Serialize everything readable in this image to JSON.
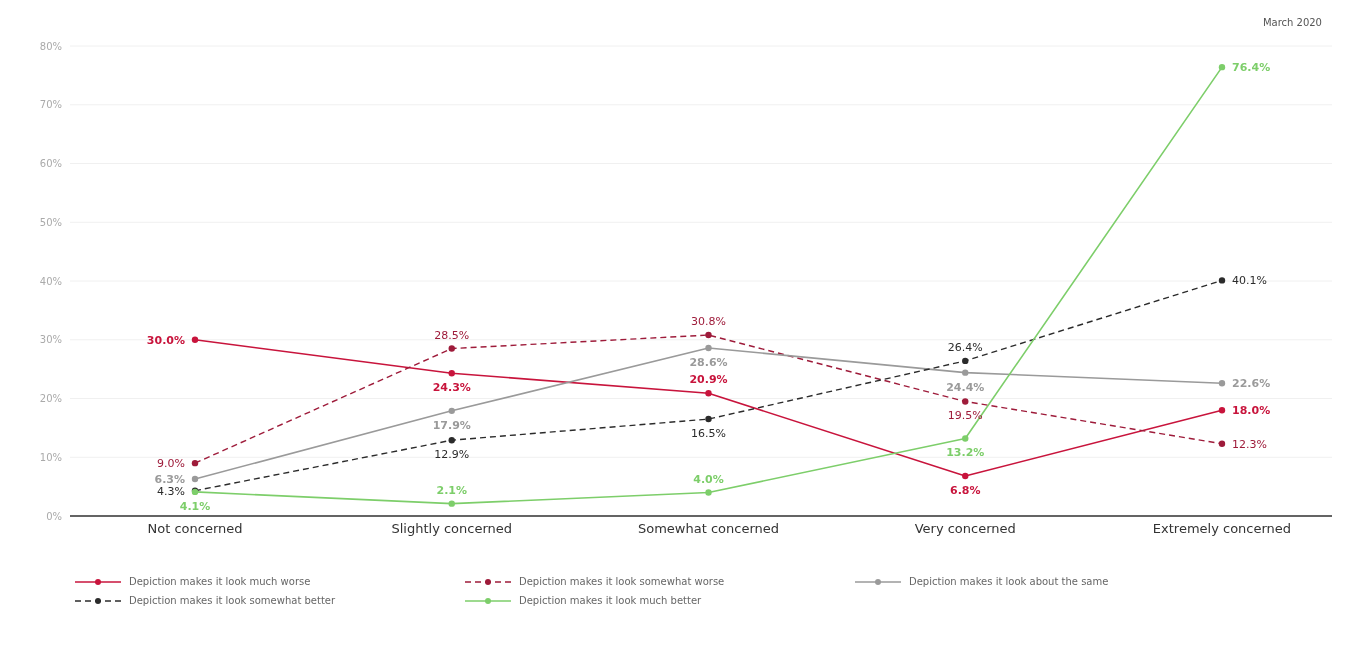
{
  "chart_data": {
    "type": "line",
    "annotations": [
      "March 2020"
    ],
    "categories": [
      "Not concerned",
      "Slightly concerned",
      "Somewhat concerned",
      "Very concerned",
      "Extremely concerned"
    ],
    "series": [
      {
        "name": "Depiction makes it look much worse",
        "color": "#c8143c",
        "line_style": "solid",
        "values": [
          30.0,
          24.3,
          20.9,
          6.8,
          18.0
        ],
        "value_labels": [
          "30.0%",
          "24.3%",
          "20.9%",
          "6.8%",
          "18.0%"
        ]
      },
      {
        "name": "Depiction makes it look somewhat worse",
        "color": "#9e1b3a",
        "line_style": "dashed",
        "values": [
          9.0,
          28.5,
          30.8,
          19.5,
          12.3
        ],
        "value_labels": [
          "9.0%",
          "28.5%",
          "30.8%",
          "19.5%",
          "12.3%"
        ]
      },
      {
        "name": "Depiction makes it look about the same",
        "color": "#9a9a9a",
        "line_style": "solid",
        "values": [
          6.3,
          17.9,
          28.6,
          24.4,
          22.6
        ],
        "value_labels": [
          "6.3%",
          "17.9%",
          "28.6%",
          "24.4%",
          "22.6%"
        ]
      },
      {
        "name": "Depiction makes it look  somewhat better",
        "color": "#2b2b2b",
        "line_style": "dashed",
        "values": [
          4.3,
          12.9,
          16.5,
          26.4,
          40.1
        ],
        "value_labels": [
          "4.3%",
          "12.9%",
          "16.5%",
          "26.4%",
          "40.1%"
        ]
      },
      {
        "name": "Depiction makes it look much better",
        "color": "#7dce6a",
        "line_style": "solid",
        "values": [
          4.1,
          2.1,
          4.0,
          13.2,
          76.4
        ],
        "value_labels": [
          "4.1%",
          "2.1%",
          "4.0%",
          "13.2%",
          "76.4%"
        ]
      }
    ],
    "ylim": [
      0,
      80
    ],
    "yticks": [
      {
        "value": 0,
        "label": "0%"
      },
      {
        "value": 10,
        "label": "10%"
      },
      {
        "value": 20,
        "label": "20%"
      },
      {
        "value": 30,
        "label": "30%"
      },
      {
        "value": 40,
        "label": "40%"
      },
      {
        "value": 50,
        "label": "50%"
      },
      {
        "value": 60,
        "label": "60%"
      },
      {
        "value": 70,
        "label": "70%"
      },
      {
        "value": 80,
        "label": "80%"
      }
    ],
    "grid": "y",
    "legend": "bottom",
    "marker": "circle"
  }
}
